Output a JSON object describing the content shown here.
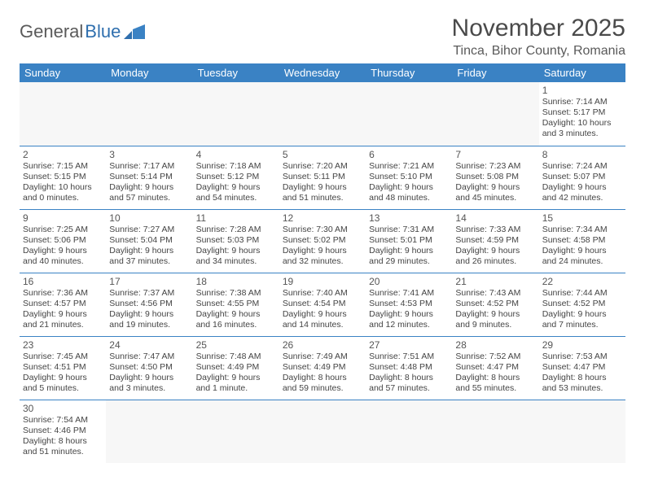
{
  "logo": {
    "text1": "General",
    "text2": "Blue"
  },
  "header": {
    "month_title": "November 2025",
    "location": "Tinca, Bihor County, Romania"
  },
  "colors": {
    "header_bg": "#3a82c4",
    "header_fg": "#ffffff",
    "cell_border": "#3a82c4",
    "empty_bg": "#f7f7f7",
    "text": "#444444",
    "title": "#4a4a4a",
    "logo_gray": "#5a5a5a",
    "logo_blue": "#2f6fae"
  },
  "weekdays": [
    "Sunday",
    "Monday",
    "Tuesday",
    "Wednesday",
    "Thursday",
    "Friday",
    "Saturday"
  ],
  "weeks": [
    [
      null,
      null,
      null,
      null,
      null,
      null,
      {
        "d": "1",
        "rise": "7:14 AM",
        "set": "5:17 PM",
        "dl": "10 hours and 3 minutes."
      }
    ],
    [
      {
        "d": "2",
        "rise": "7:15 AM",
        "set": "5:15 PM",
        "dl": "10 hours and 0 minutes."
      },
      {
        "d": "3",
        "rise": "7:17 AM",
        "set": "5:14 PM",
        "dl": "9 hours and 57 minutes."
      },
      {
        "d": "4",
        "rise": "7:18 AM",
        "set": "5:12 PM",
        "dl": "9 hours and 54 minutes."
      },
      {
        "d": "5",
        "rise": "7:20 AM",
        "set": "5:11 PM",
        "dl": "9 hours and 51 minutes."
      },
      {
        "d": "6",
        "rise": "7:21 AM",
        "set": "5:10 PM",
        "dl": "9 hours and 48 minutes."
      },
      {
        "d": "7",
        "rise": "7:23 AM",
        "set": "5:08 PM",
        "dl": "9 hours and 45 minutes."
      },
      {
        "d": "8",
        "rise": "7:24 AM",
        "set": "5:07 PM",
        "dl": "9 hours and 42 minutes."
      }
    ],
    [
      {
        "d": "9",
        "rise": "7:25 AM",
        "set": "5:06 PM",
        "dl": "9 hours and 40 minutes."
      },
      {
        "d": "10",
        "rise": "7:27 AM",
        "set": "5:04 PM",
        "dl": "9 hours and 37 minutes."
      },
      {
        "d": "11",
        "rise": "7:28 AM",
        "set": "5:03 PM",
        "dl": "9 hours and 34 minutes."
      },
      {
        "d": "12",
        "rise": "7:30 AM",
        "set": "5:02 PM",
        "dl": "9 hours and 32 minutes."
      },
      {
        "d": "13",
        "rise": "7:31 AM",
        "set": "5:01 PM",
        "dl": "9 hours and 29 minutes."
      },
      {
        "d": "14",
        "rise": "7:33 AM",
        "set": "4:59 PM",
        "dl": "9 hours and 26 minutes."
      },
      {
        "d": "15",
        "rise": "7:34 AM",
        "set": "4:58 PM",
        "dl": "9 hours and 24 minutes."
      }
    ],
    [
      {
        "d": "16",
        "rise": "7:36 AM",
        "set": "4:57 PM",
        "dl": "9 hours and 21 minutes."
      },
      {
        "d": "17",
        "rise": "7:37 AM",
        "set": "4:56 PM",
        "dl": "9 hours and 19 minutes."
      },
      {
        "d": "18",
        "rise": "7:38 AM",
        "set": "4:55 PM",
        "dl": "9 hours and 16 minutes."
      },
      {
        "d": "19",
        "rise": "7:40 AM",
        "set": "4:54 PM",
        "dl": "9 hours and 14 minutes."
      },
      {
        "d": "20",
        "rise": "7:41 AM",
        "set": "4:53 PM",
        "dl": "9 hours and 12 minutes."
      },
      {
        "d": "21",
        "rise": "7:43 AM",
        "set": "4:52 PM",
        "dl": "9 hours and 9 minutes."
      },
      {
        "d": "22",
        "rise": "7:44 AM",
        "set": "4:52 PM",
        "dl": "9 hours and 7 minutes."
      }
    ],
    [
      {
        "d": "23",
        "rise": "7:45 AM",
        "set": "4:51 PM",
        "dl": "9 hours and 5 minutes."
      },
      {
        "d": "24",
        "rise": "7:47 AM",
        "set": "4:50 PM",
        "dl": "9 hours and 3 minutes."
      },
      {
        "d": "25",
        "rise": "7:48 AM",
        "set": "4:49 PM",
        "dl": "9 hours and 1 minute."
      },
      {
        "d": "26",
        "rise": "7:49 AM",
        "set": "4:49 PM",
        "dl": "8 hours and 59 minutes."
      },
      {
        "d": "27",
        "rise": "7:51 AM",
        "set": "4:48 PM",
        "dl": "8 hours and 57 minutes."
      },
      {
        "d": "28",
        "rise": "7:52 AM",
        "set": "4:47 PM",
        "dl": "8 hours and 55 minutes."
      },
      {
        "d": "29",
        "rise": "7:53 AM",
        "set": "4:47 PM",
        "dl": "8 hours and 53 minutes."
      }
    ],
    [
      {
        "d": "30",
        "rise": "7:54 AM",
        "set": "4:46 PM",
        "dl": "8 hours and 51 minutes."
      },
      null,
      null,
      null,
      null,
      null,
      null
    ]
  ],
  "labels": {
    "sunrise_prefix": "Sunrise: ",
    "sunset_prefix": "Sunset: ",
    "daylight_prefix": "Daylight: "
  }
}
